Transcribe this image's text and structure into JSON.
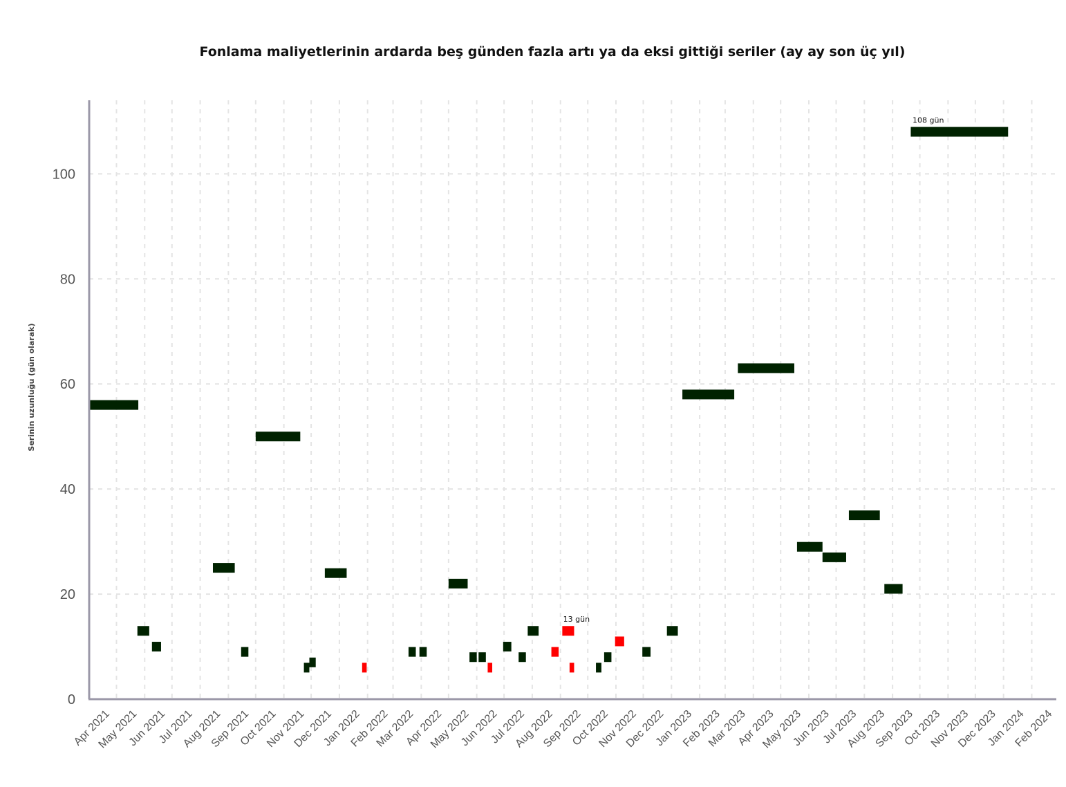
{
  "chart_data": {
    "type": "bar",
    "title": "Fonlama maliyetlerinin ardarda beş günden fazla artı ya da eksi gittiği seriler (ay ay son üç yıl)",
    "ylabel": "Serinin uzunluğu (gün olarak)",
    "xlabel": "",
    "ylim": [
      0,
      114
    ],
    "xlim": [
      "2021-04-01",
      "2024-02-28"
    ],
    "yticks": [
      0,
      20,
      40,
      60,
      80,
      100
    ],
    "xticks": [
      {
        "date": "2021-04-01",
        "label": "Apr 2021"
      },
      {
        "date": "2021-05-01",
        "label": "May 2021"
      },
      {
        "date": "2021-06-01",
        "label": "Jun 2021"
      },
      {
        "date": "2021-07-01",
        "label": "Jul 2021"
      },
      {
        "date": "2021-08-01",
        "label": "Aug 2021"
      },
      {
        "date": "2021-09-01",
        "label": "Sep 2021"
      },
      {
        "date": "2021-10-01",
        "label": "Oct 2021"
      },
      {
        "date": "2021-11-01",
        "label": "Nov 2021"
      },
      {
        "date": "2021-12-01",
        "label": "Dec 2021"
      },
      {
        "date": "2022-01-01",
        "label": "Jan 2022"
      },
      {
        "date": "2022-02-01",
        "label": "Feb 2022"
      },
      {
        "date": "2022-03-01",
        "label": "Mar 2022"
      },
      {
        "date": "2022-04-01",
        "label": "Apr 2022"
      },
      {
        "date": "2022-05-01",
        "label": "May 2022"
      },
      {
        "date": "2022-06-01",
        "label": "Jun 2022"
      },
      {
        "date": "2022-07-01",
        "label": "Jul 2022"
      },
      {
        "date": "2022-08-01",
        "label": "Aug 2022"
      },
      {
        "date": "2022-09-01",
        "label": "Sep 2022"
      },
      {
        "date": "2022-10-01",
        "label": "Oct 2022"
      },
      {
        "date": "2022-11-01",
        "label": "Nov 2022"
      },
      {
        "date": "2022-12-01",
        "label": "Dec 2022"
      },
      {
        "date": "2023-01-01",
        "label": "Jan 2023"
      },
      {
        "date": "2023-02-01",
        "label": "Feb 2023"
      },
      {
        "date": "2023-03-01",
        "label": "Mar 2023"
      },
      {
        "date": "2023-04-01",
        "label": "Apr 2023"
      },
      {
        "date": "2023-05-01",
        "label": "May 2023"
      },
      {
        "date": "2023-06-01",
        "label": "Jun 2023"
      },
      {
        "date": "2023-07-01",
        "label": "Jul 2023"
      },
      {
        "date": "2023-08-01",
        "label": "Aug 2023"
      },
      {
        "date": "2023-09-01",
        "label": "Sep 2023"
      },
      {
        "date": "2023-10-01",
        "label": "Oct 2023"
      },
      {
        "date": "2023-11-01",
        "label": "Nov 2023"
      },
      {
        "date": "2023-12-01",
        "label": "Dec 2023"
      },
      {
        "date": "2024-01-01",
        "label": "Jan 2024"
      },
      {
        "date": "2024-02-01",
        "label": "Feb 2024"
      }
    ],
    "grid": true,
    "colors": {
      "plus": "#002200",
      "minus": "#ff0000",
      "axis": "#9b98a8",
      "grid": "#e4e4e4"
    },
    "series": [
      {
        "color": "plus",
        "segments": [
          {
            "start": "2021-04-01",
            "end": "2021-05-25",
            "y": 56
          },
          {
            "start": "2021-05-24",
            "end": "2021-06-06",
            "y": 13
          },
          {
            "start": "2021-06-09",
            "end": "2021-06-19",
            "y": 10
          },
          {
            "start": "2021-08-15",
            "end": "2021-09-08",
            "y": 25
          },
          {
            "start": "2021-09-15",
            "end": "2021-09-23",
            "y": 9
          },
          {
            "start": "2021-10-01",
            "end": "2021-11-19",
            "y": 50
          },
          {
            "start": "2021-11-23",
            "end": "2021-11-29",
            "y": 6
          },
          {
            "start": "2021-11-29",
            "end": "2021-12-06",
            "y": 7
          },
          {
            "start": "2021-12-16",
            "end": "2022-01-09",
            "y": 24
          },
          {
            "start": "2022-03-18",
            "end": "2022-03-26",
            "y": 9
          },
          {
            "start": "2022-03-30",
            "end": "2022-04-07",
            "y": 9
          },
          {
            "start": "2022-05-01",
            "end": "2022-05-22",
            "y": 22
          },
          {
            "start": "2022-05-24",
            "end": "2022-06-01",
            "y": 8
          },
          {
            "start": "2022-06-03",
            "end": "2022-06-11",
            "y": 8
          },
          {
            "start": "2022-06-30",
            "end": "2022-07-09",
            "y": 10
          },
          {
            "start": "2022-07-17",
            "end": "2022-07-25",
            "y": 8
          },
          {
            "start": "2022-07-27",
            "end": "2022-08-08",
            "y": 13
          },
          {
            "start": "2022-10-10",
            "end": "2022-10-16",
            "y": 6
          },
          {
            "start": "2022-10-19",
            "end": "2022-10-27",
            "y": 8
          },
          {
            "start": "2022-11-30",
            "end": "2022-12-09",
            "y": 9
          },
          {
            "start": "2022-12-27",
            "end": "2023-01-08",
            "y": 13
          },
          {
            "start": "2023-01-13",
            "end": "2023-03-11",
            "y": 58
          },
          {
            "start": "2023-03-15",
            "end": "2023-05-16",
            "y": 63
          },
          {
            "start": "2023-05-19",
            "end": "2023-06-16",
            "y": 29
          },
          {
            "start": "2023-06-16",
            "end": "2023-07-12",
            "y": 27
          },
          {
            "start": "2023-07-15",
            "end": "2023-08-18",
            "y": 35
          },
          {
            "start": "2023-08-23",
            "end": "2023-09-12",
            "y": 21
          },
          {
            "start": "2023-09-21",
            "end": "2024-01-06",
            "y": 108
          }
        ]
      },
      {
        "color": "minus",
        "segments": [
          {
            "start": "2022-01-26",
            "end": "2022-01-31",
            "y": 6
          },
          {
            "start": "2022-06-13",
            "end": "2022-06-18",
            "y": 6
          },
          {
            "start": "2022-08-22",
            "end": "2022-08-30",
            "y": 9
          },
          {
            "start": "2022-09-03",
            "end": "2022-09-16",
            "y": 13
          },
          {
            "start": "2022-09-11",
            "end": "2022-09-16",
            "y": 6
          },
          {
            "start": "2022-10-31",
            "end": "2022-11-10",
            "y": 11
          }
        ]
      }
    ],
    "annotations": [
      {
        "text": "13 gün",
        "x": "2022-09-04",
        "y": 15
      },
      {
        "text": "108 gün",
        "x": "2023-09-23",
        "y": 110
      }
    ]
  }
}
